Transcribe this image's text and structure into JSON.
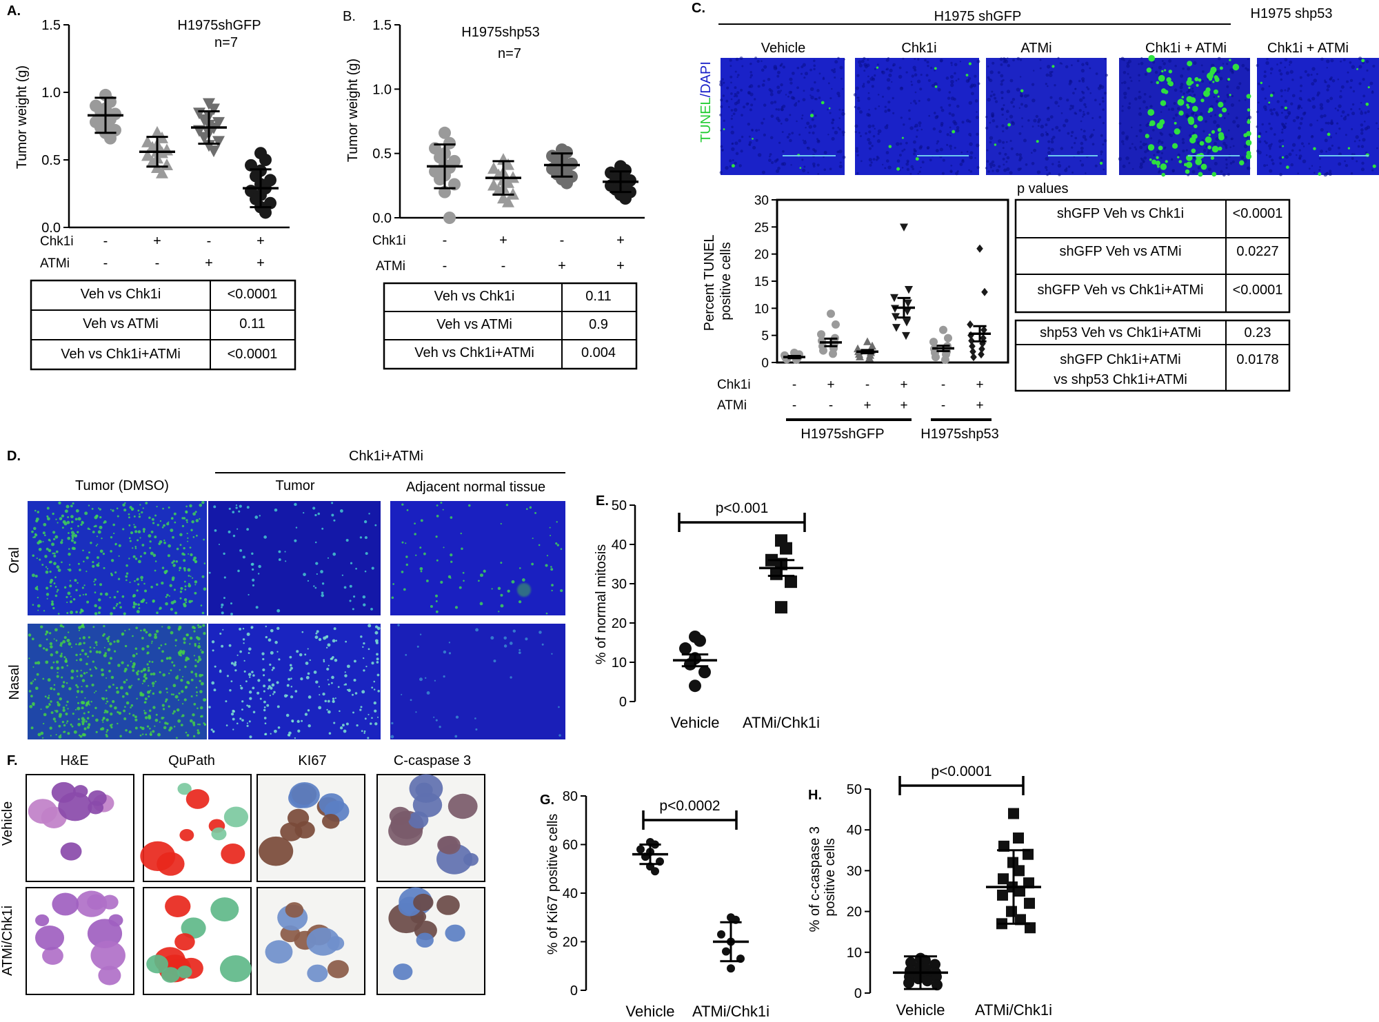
{
  "colors": {
    "gray_marker": "#9a9a9a",
    "black_marker": "#1a1a1a",
    "tunel_green": "#22cc33",
    "dapi_blue": "#1a22c8",
    "he_purple": "#9a5ab8",
    "qupath_red": "#e8271c",
    "qupath_green": "#7cc9a0",
    "ihc_brown": "#7a4a3a",
    "ihc_blue": "#5b7fc4"
  },
  "panelA": {
    "letter": "A.",
    "title": "H1975shGFP",
    "n_label": "n=7",
    "ylabel": "Tumor weight (g)",
    "yticks": [
      "0.0",
      "0.5",
      "1.0",
      "1.5"
    ],
    "row1_label": "Chk1i",
    "row1_signs": [
      "-",
      "+",
      "-",
      "+"
    ],
    "row2_label": "ATMi",
    "row2_signs": [
      "-",
      "-",
      "+",
      "+"
    ],
    "table": [
      [
        "Veh vs Chk1i",
        "<0.0001"
      ],
      [
        "Veh vs ATMi",
        "0.11"
      ],
      [
        "Veh vs Chk1i+ATMi",
        "<0.0001"
      ]
    ]
  },
  "panelB": {
    "letter": "B.",
    "title": "H1975shp53",
    "n_label": "n=7",
    "ylabel": "Tumor weight (g)",
    "yticks": [
      "0.0",
      "0.5",
      "1.0",
      "1.5"
    ],
    "row1_label": "Chk1i",
    "row1_signs": [
      "-",
      "+",
      "-",
      "+"
    ],
    "row2_label": "ATMi",
    "row2_signs": [
      "-",
      "-",
      "+",
      "+"
    ],
    "table": [
      [
        "Veh vs Chk1i",
        "0.11"
      ],
      [
        "Veh vs ATMi",
        "0.9"
      ],
      [
        "Veh vs Chk1i+ATMi",
        "0.004"
      ]
    ]
  },
  "panelC": {
    "letter": "C.",
    "group1": "H1975 shGFP",
    "group2": "H1975 shp53",
    "image_labels": [
      "Vehicle",
      "Chk1i",
      "ATMi",
      "Chk1i + ATMi",
      "Chk1i + ATMi"
    ],
    "stain_part1": "TUNEL",
    "stain_sep": "/",
    "stain_part2": "DAPI",
    "ylabel_line1": "Percent TUNEL",
    "ylabel_line2": "positive cells",
    "yticks": [
      "0",
      "5",
      "10",
      "15",
      "20",
      "25",
      "30"
    ],
    "row1_label": "Chk1i",
    "row1_signs": [
      "-",
      "+",
      "-",
      "+",
      "-",
      "+"
    ],
    "row2_label": "ATMi",
    "row2_signs": [
      "-",
      "-",
      "+",
      "+",
      "-",
      "+"
    ],
    "group_label1": "H1975shGFP",
    "group_label2": "H1975shp53",
    "pvalues_title": "p values",
    "table1": [
      [
        "shGFP Veh vs Chk1i",
        "<0.0001"
      ],
      [
        "shGFP Veh vs ATMi",
        "0.0227"
      ],
      [
        "shGFP Veh vs Chk1i+ATMi",
        "<0.0001"
      ]
    ],
    "table2_row1": [
      "shp53 Veh vs Chk1i+ATMi",
      "0.23"
    ],
    "table2_row2_line1": "shGFP Chk1i+ATMi",
    "table2_row2_line2": "vs shp53 Chk1i+ATMi",
    "table2_row2_value": "0.0178"
  },
  "panelD": {
    "letter": "D.",
    "treatment": "Chk1i+ATMi",
    "col_labels": [
      "Tumor (DMSO)",
      "Tumor",
      "Adjacent normal tissue"
    ],
    "row_labels": [
      "Oral",
      "Nasal"
    ]
  },
  "panelE": {
    "letter": "E.",
    "ylabel": "% of normal mitosis",
    "yticks": [
      "0",
      "10",
      "20",
      "30",
      "40",
      "50"
    ],
    "pvalue": "p<0.001"
  },
  "panelF": {
    "letter": "F.",
    "col_labels": [
      "H&E",
      "QuPath",
      "KI67",
      "C-caspase 3"
    ],
    "row_labels": [
      "Vehicle",
      "ATMi/Chk1i"
    ]
  },
  "panelG": {
    "letter": "G.",
    "ylabel": "% of Ki67 positive cells",
    "yticks": [
      "0",
      "20",
      "40",
      "60",
      "80"
    ],
    "pvalue": "p<0.0002"
  },
  "panelH": {
    "letter": "H.",
    "ylabel_line1": "% of c-caspase 3",
    "ylabel_line2": "positive cells",
    "yticks": [
      "0",
      "10",
      "20",
      "30",
      "40",
      "50"
    ],
    "pvalue": "p<0.0001"
  },
  "chart_data": [
    {
      "id": "A",
      "type": "scatter",
      "title": "H1975shGFP",
      "ylabel": "Tumor weight (g)",
      "ylim": [
        0,
        1.5
      ],
      "categories": [
        "Chk1i- ATMi-",
        "Chk1i+ ATMi-",
        "Chk1i- ATMi+",
        "Chk1i+ ATMi+"
      ],
      "marker_shapes": [
        "circle",
        "triangle-up",
        "triangle-down",
        "circle"
      ],
      "marker_colors": [
        "#9a9a9a",
        "#9a9a9a",
        "#6e6e6e",
        "#1a1a1a"
      ],
      "series": [
        {
          "points": [
            0.98,
            0.93,
            0.9,
            0.88,
            0.86,
            0.84,
            0.82,
            0.8,
            0.78,
            0.76,
            0.74,
            0.72,
            0.7,
            0.66
          ],
          "mean": 0.83,
          "sd": 0.13
        },
        {
          "points": [
            0.7,
            0.66,
            0.63,
            0.61,
            0.59,
            0.57,
            0.56,
            0.55,
            0.53,
            0.51,
            0.48,
            0.46,
            0.44,
            0.4
          ],
          "mean": 0.56,
          "sd": 0.11
        },
        {
          "points": [
            0.92,
            0.88,
            0.85,
            0.83,
            0.8,
            0.78,
            0.76,
            0.74,
            0.72,
            0.7,
            0.67,
            0.64,
            0.61,
            0.57
          ],
          "mean": 0.74,
          "sd": 0.12
        },
        {
          "points": [
            0.55,
            0.5,
            0.46,
            0.42,
            0.38,
            0.35,
            0.32,
            0.29,
            0.27,
            0.24,
            0.21,
            0.18,
            0.15,
            0.11
          ],
          "mean": 0.29,
          "sd": 0.14
        }
      ]
    },
    {
      "id": "B",
      "type": "scatter",
      "title": "H1975shp53",
      "ylabel": "Tumor weight (g)",
      "ylim": [
        0,
        1.5
      ],
      "categories": [
        "Chk1i- ATMi-",
        "Chk1i+ ATMi-",
        "Chk1i- ATMi+",
        "Chk1i+ ATMi+"
      ],
      "marker_shapes": [
        "circle",
        "triangle-up",
        "circle",
        "circle"
      ],
      "marker_colors": [
        "#9a9a9a",
        "#9a9a9a",
        "#6e6e6e",
        "#1a1a1a"
      ],
      "series": [
        {
          "points": [
            0.66,
            0.58,
            0.54,
            0.5,
            0.47,
            0.44,
            0.41,
            0.39,
            0.36,
            0.33,
            0.3,
            0.26,
            0.2,
            0.0
          ],
          "mean": 0.4,
          "sd": 0.17
        },
        {
          "points": [
            0.45,
            0.41,
            0.38,
            0.35,
            0.33,
            0.31,
            0.29,
            0.27,
            0.25,
            0.23,
            0.21,
            0.18,
            0.15,
            0.12
          ],
          "mean": 0.31,
          "sd": 0.13
        },
        {
          "points": [
            0.53,
            0.51,
            0.48,
            0.46,
            0.44,
            0.42,
            0.41,
            0.39,
            0.38,
            0.36,
            0.34,
            0.32,
            0.3,
            0.27
          ],
          "mean": 0.41,
          "sd": 0.09
        },
        {
          "points": [
            0.4,
            0.37,
            0.35,
            0.33,
            0.31,
            0.29,
            0.28,
            0.27,
            0.25,
            0.24,
            0.22,
            0.2,
            0.18,
            0.15
          ],
          "mean": 0.28,
          "sd": 0.08
        }
      ]
    },
    {
      "id": "C",
      "type": "scatter",
      "ylabel": "Percent TUNEL positive cells",
      "ylim": [
        0,
        30
      ],
      "categories": [
        "shGFP Veh",
        "shGFP Chk1i",
        "shGFP ATMi",
        "shGFP Chk1i+ATMi",
        "shp53 Veh",
        "shp53 Chk1i+ATMi"
      ],
      "marker_shapes": [
        "circle",
        "circle",
        "triangle-up",
        "triangle-down",
        "circle",
        "diamond"
      ],
      "marker_colors": [
        "#9a9a9a",
        "#9a9a9a",
        "#6e6e6e",
        "#1a1a1a",
        "#9a9a9a",
        "#1a1a1a"
      ],
      "series": [
        {
          "points": [
            1.8,
            1.5,
            1.3,
            1.1,
            1.0,
            0.9,
            0.8,
            0.7,
            0.6,
            0.5
          ],
          "mean": 1.0,
          "sem": 0.2
        },
        {
          "points": [
            9.0,
            7.0,
            5.2,
            4.5,
            4.0,
            3.5,
            3.0,
            2.6,
            2.2,
            1.6
          ],
          "mean": 3.7,
          "sem": 0.7
        },
        {
          "points": [
            3.8,
            3.0,
            2.5,
            2.2,
            2.0,
            1.8,
            1.5,
            1.3,
            1.0,
            0.8
          ],
          "mean": 2.0,
          "sem": 0.3
        },
        {
          "points": [
            25.0,
            13.5,
            12.0,
            11.0,
            10.0,
            9.5,
            8.5,
            7.5,
            6.5,
            5.0
          ],
          "mean": 10.1,
          "sem": 1.8
        },
        {
          "points": [
            6.0,
            4.5,
            3.8,
            3.0,
            2.5,
            2.0,
            1.8,
            1.5,
            1.0,
            0.5
          ],
          "mean": 2.6,
          "sem": 0.5
        },
        {
          "points": [
            21.0,
            13.0,
            7.0,
            6.0,
            5.0,
            4.5,
            4.0,
            3.5,
            3.0,
            2.5,
            2.0,
            1.5,
            1.0
          ],
          "mean": 5.3,
          "sem": 1.4
        }
      ]
    },
    {
      "id": "E",
      "type": "scatter",
      "ylabel": "% of normal mitosis",
      "ylim": [
        0,
        50
      ],
      "categories": [
        "Vehicle",
        "ATMi/Chk1i"
      ],
      "marker_shapes": [
        "circle",
        "square"
      ],
      "marker_colors": [
        "#111111",
        "#111111"
      ],
      "series": [
        {
          "points": [
            16.5,
            15.5,
            13.5,
            11.0,
            9.5,
            7.5,
            4.0
          ],
          "mean": 10.5,
          "sem": 1.5
        },
        {
          "points": [
            41.0,
            39.0,
            36.0,
            35.0,
            32.5,
            30.5,
            24.0
          ],
          "mean": 34.0,
          "sem": 2.0
        }
      ]
    },
    {
      "id": "G",
      "type": "scatter",
      "ylabel": "% of Ki67 positive cells",
      "ylim": [
        0,
        80
      ],
      "categories": [
        "Vehicle",
        "ATMi/Chk1i"
      ],
      "marker_shapes": [
        "circle",
        "circle"
      ],
      "marker_colors": [
        "#111111",
        "#111111"
      ],
      "series": [
        {
          "points": [
            61.0,
            60.0,
            58.0,
            57.0,
            55.0,
            53.0,
            51.0,
            49.0
          ],
          "mean": 56.0,
          "sd": 4.0
        },
        {
          "points": [
            30.0,
            29.0,
            23.0,
            20.0,
            16.0,
            13.0,
            9.0
          ],
          "mean": 20.0,
          "sd": 8.0
        }
      ]
    },
    {
      "id": "H",
      "type": "scatter",
      "ylabel": "% of c-caspase 3 positive cells",
      "ylim": [
        0,
        50
      ],
      "categories": [
        "Vehicle",
        "ATMi/Chk1i"
      ],
      "marker_shapes": [
        "circle",
        "square"
      ],
      "marker_colors": [
        "#111111",
        "#111111"
      ],
      "series": [
        {
          "points": [
            8.5,
            8.0,
            7.5,
            7.0,
            6.5,
            6.0,
            5.5,
            5.0,
            5.0,
            4.5,
            4.0,
            4.0,
            3.5,
            3.0,
            2.5,
            2.0
          ],
          "mean": 5.0,
          "sd": 4.0
        },
        {
          "points": [
            44.0,
            38.0,
            36.0,
            34.0,
            32.0,
            30.0,
            28.0,
            27.0,
            26.0,
            25.0,
            24.0,
            22.0,
            20.0,
            18.0,
            17.0,
            16.0
          ],
          "mean": 26.0,
          "sd": 9.0
        }
      ]
    }
  ]
}
